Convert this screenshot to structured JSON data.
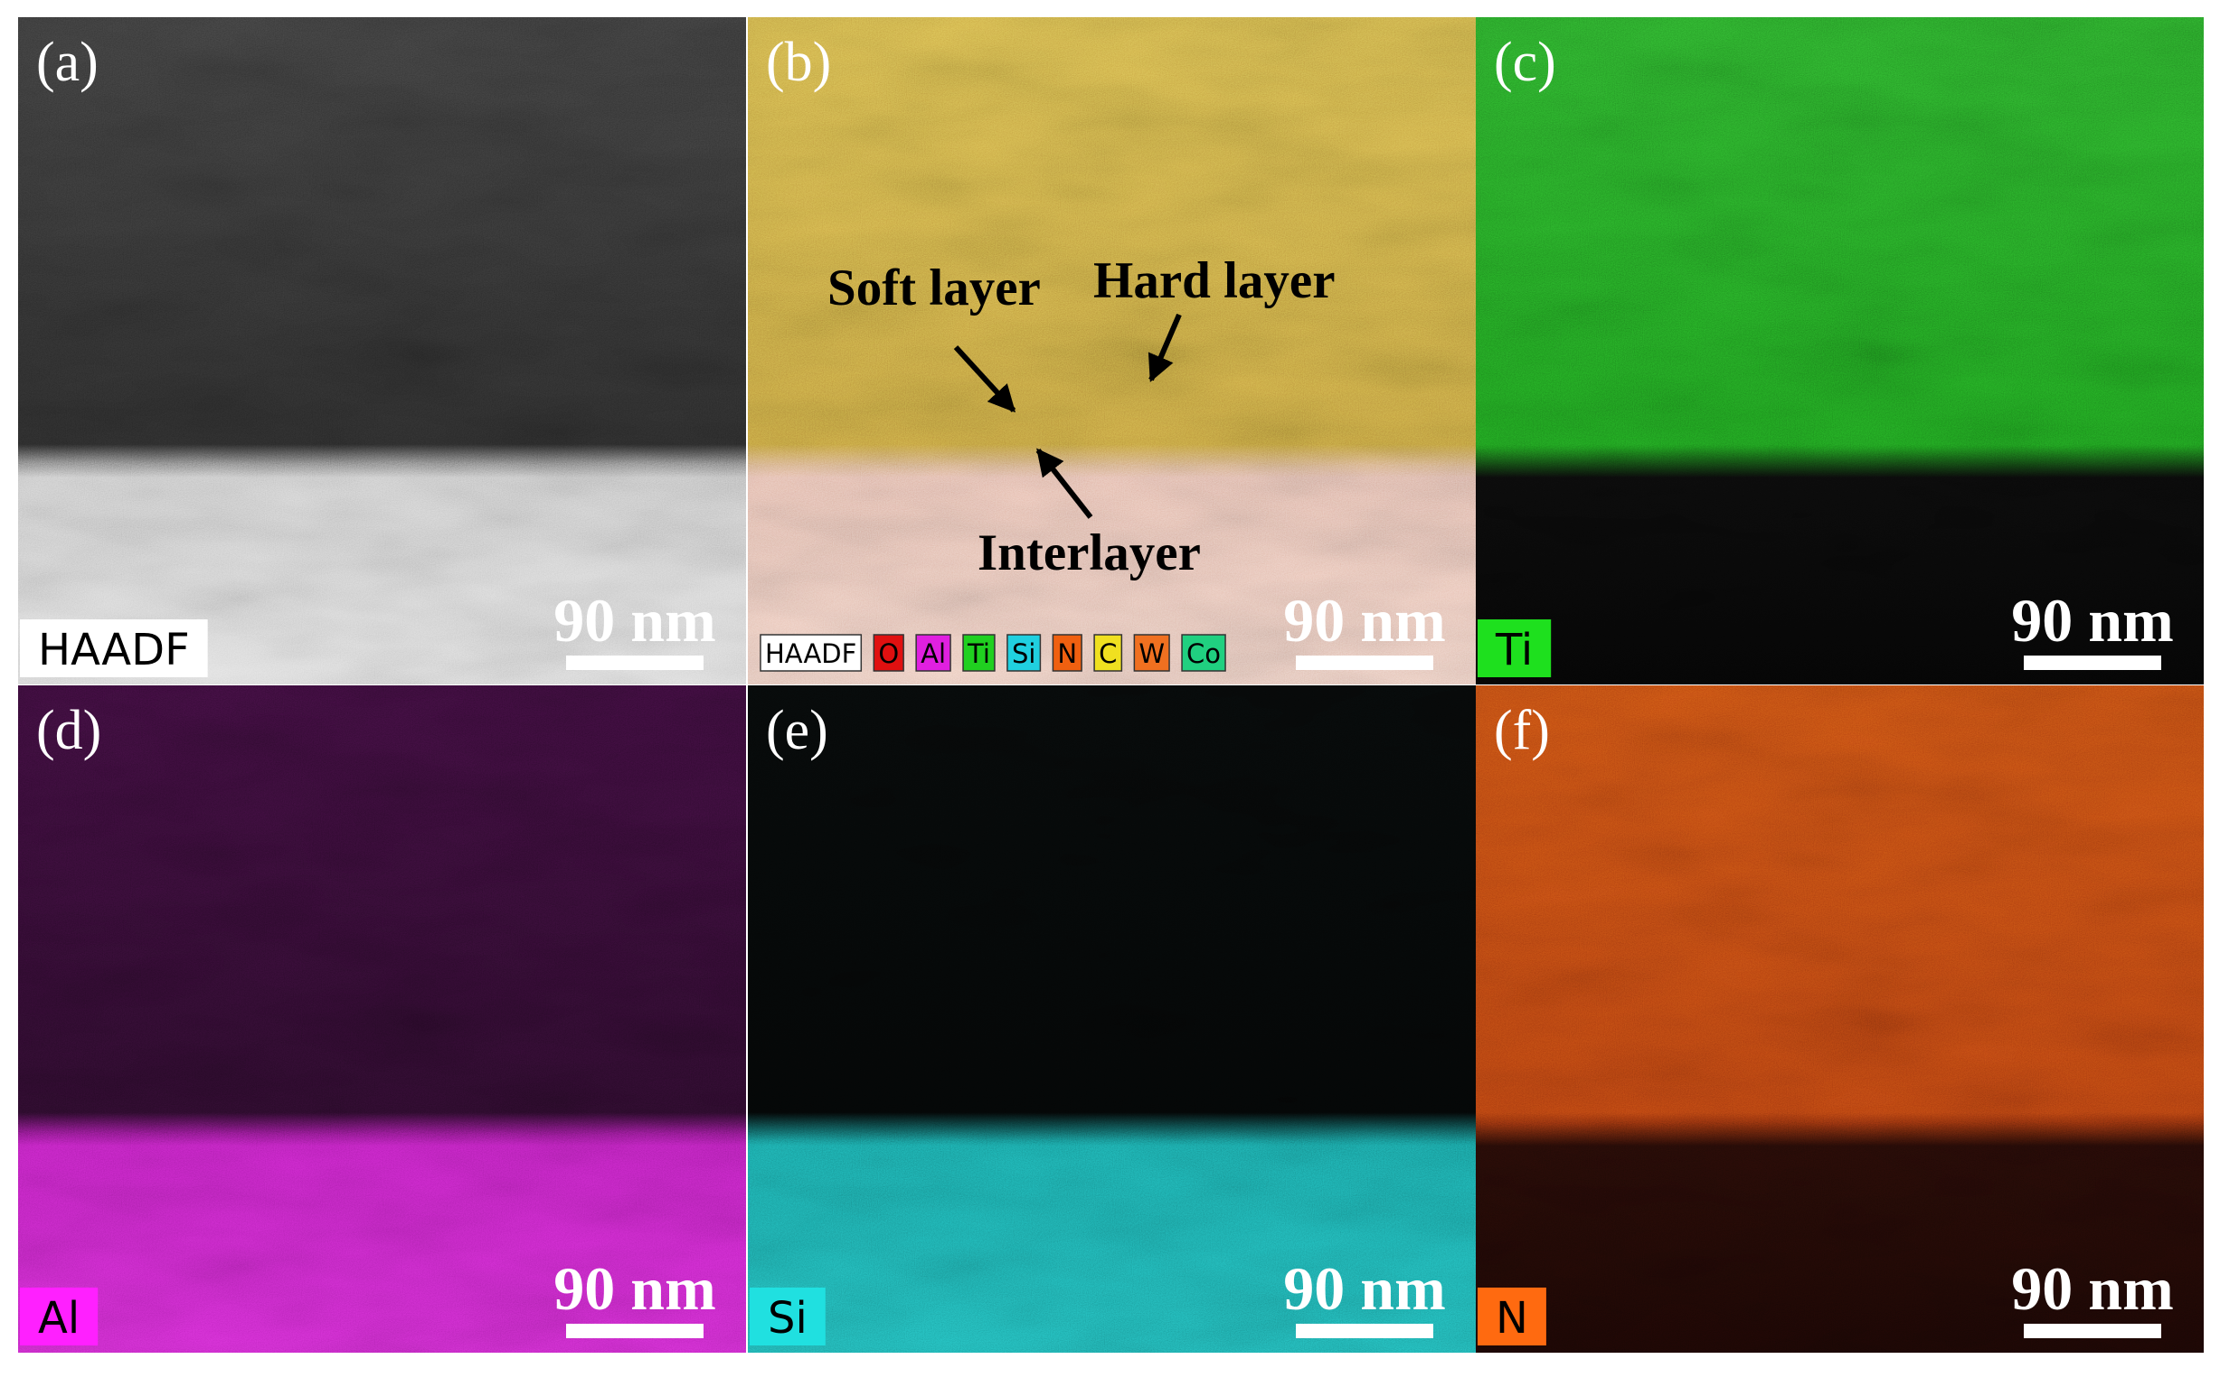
{
  "panels": [
    {
      "label": "(a)",
      "element": "HAADF",
      "scale_bar": "90 nm"
    },
    {
      "label": "(b)",
      "scale_bar": "90 nm",
      "annotations": [
        "Soft layer",
        "Hard layer",
        "Interlayer"
      ],
      "element_chips": [
        "HAADF",
        "O",
        "Al",
        "Ti",
        "Si",
        "N",
        "C",
        "W",
        "Co"
      ]
    },
    {
      "label": "(c)",
      "element": "Ti",
      "scale_bar": "90 nm"
    },
    {
      "label": "(d)",
      "element": "Al",
      "scale_bar": "90 nm"
    },
    {
      "label": "(e)",
      "element": "Si",
      "scale_bar": "90 nm"
    },
    {
      "label": "(f)",
      "element": "N",
      "scale_bar": "90 nm"
    }
  ]
}
